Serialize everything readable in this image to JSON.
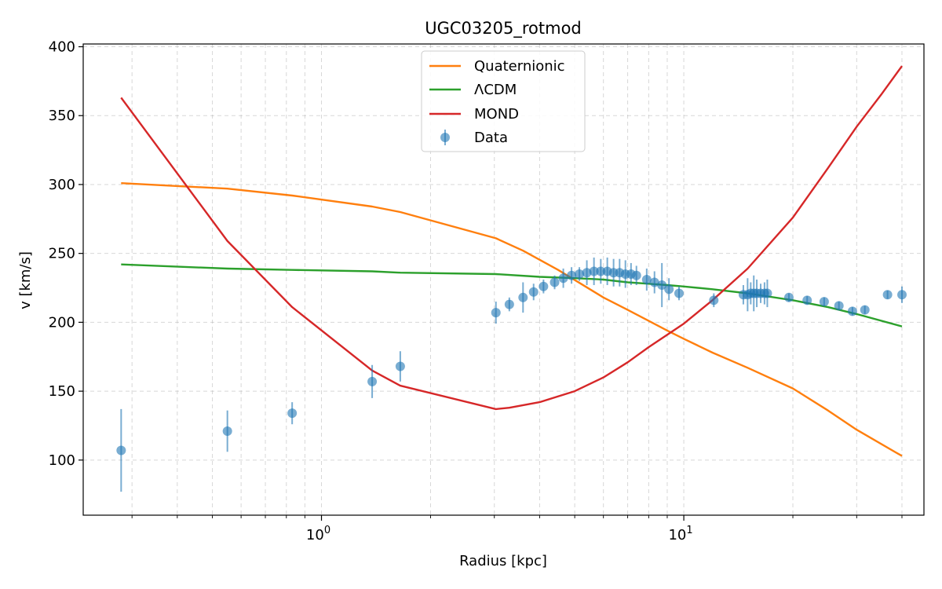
{
  "chart_data": {
    "type": "line",
    "title": "UGC03205_rotmod",
    "xlabel": "Radius [kpc]",
    "ylabel": "v [km/s]",
    "xscale": "log",
    "xlim": [
      0.22,
      46
    ],
    "ylim": [
      60,
      402
    ],
    "yticks": [
      100,
      150,
      200,
      250,
      300,
      350,
      400
    ],
    "xticks_major": [
      {
        "value": 1,
        "base": "10",
        "exp": "0"
      },
      {
        "value": 10,
        "base": "10",
        "exp": "1"
      }
    ],
    "grid": true,
    "legend_position": "top-center",
    "colors": {
      "quaternionic": "#ff7f0e",
      "lcdm": "#2ca02c",
      "mond": "#d62728",
      "data": "#1f77b4"
    },
    "series": [
      {
        "name": "Quaternionic",
        "key": "quaternionic",
        "x": [
          0.28,
          0.55,
          0.83,
          1.38,
          1.65,
          3.03,
          3.6,
          4.5,
          5.2,
          6.0,
          7.0,
          8.0,
          9.0,
          10.0,
          12.0,
          15.0,
          20.0,
          25.0,
          30.0,
          40.0
        ],
        "values": [
          301,
          297,
          292,
          284,
          280,
          261,
          252,
          238,
          228,
          218,
          209,
          201,
          194,
          188,
          178,
          167,
          152,
          136,
          122,
          103
        ]
      },
      {
        "name": "ΛCDM",
        "key": "lcdm",
        "x": [
          0.28,
          0.55,
          0.83,
          1.38,
          1.65,
          3.03,
          4.0,
          5.0,
          6.0,
          7.0,
          8.0,
          9.0,
          10.0,
          12.0,
          15.0,
          20.0,
          25.0,
          30.0,
          40.0
        ],
        "values": [
          242,
          239,
          238,
          237,
          236,
          235,
          233,
          232,
          231,
          229,
          228,
          227,
          226,
          224,
          221,
          216,
          211,
          206,
          197
        ]
      },
      {
        "name": "MOND",
        "key": "mond",
        "x": [
          0.28,
          0.55,
          0.83,
          1.38,
          1.65,
          3.03,
          3.3,
          4.0,
          5.0,
          6.0,
          7.0,
          8.0,
          9.0,
          10.0,
          12.0,
          15.0,
          20.0,
          25.0,
          30.0,
          35.0,
          40.0
        ],
        "values": [
          363,
          259,
          211,
          165,
          154,
          137,
          138,
          142,
          150,
          160,
          171,
          182,
          191,
          199,
          216,
          239,
          276,
          312,
          342,
          365,
          386
        ]
      }
    ],
    "data_points": {
      "name": "Data",
      "x": [
        0.28,
        0.55,
        0.83,
        1.38,
        1.65,
        3.03,
        3.3,
        3.6,
        3.85,
        4.1,
        4.4,
        4.65,
        4.9,
        5.15,
        5.4,
        5.65,
        5.9,
        6.15,
        6.4,
        6.65,
        6.9,
        7.15,
        7.4,
        7.9,
        8.3,
        8.7,
        9.1,
        9.7,
        12.1,
        14.6,
        15.0,
        15.3,
        15.6,
        15.9,
        16.3,
        16.7,
        17.0,
        19.5,
        21.9,
        24.4,
        26.8,
        29.2,
        31.6,
        36.5,
        40.0
      ],
      "y": [
        107,
        121,
        134,
        157,
        168,
        207,
        213,
        218,
        222,
        226,
        229,
        232,
        234,
        235,
        236,
        237,
        237,
        237,
        236,
        236,
        235,
        235,
        234,
        231,
        229,
        227,
        224,
        221,
        216,
        220,
        220,
        221,
        221,
        221,
        221,
        221,
        221,
        218,
        216,
        215,
        212,
        208,
        209,
        220,
        220
      ],
      "yerr": [
        30,
        15,
        8,
        12,
        11,
        8,
        5,
        11,
        6,
        5,
        5,
        7,
        6,
        5,
        9,
        10,
        9,
        10,
        10,
        10,
        10,
        8,
        7,
        8,
        8,
        16,
        8,
        5,
        5,
        7,
        12,
        8,
        13,
        10,
        7,
        8,
        10,
        3,
        3,
        3,
        3,
        3,
        3,
        3,
        6
      ]
    }
  }
}
